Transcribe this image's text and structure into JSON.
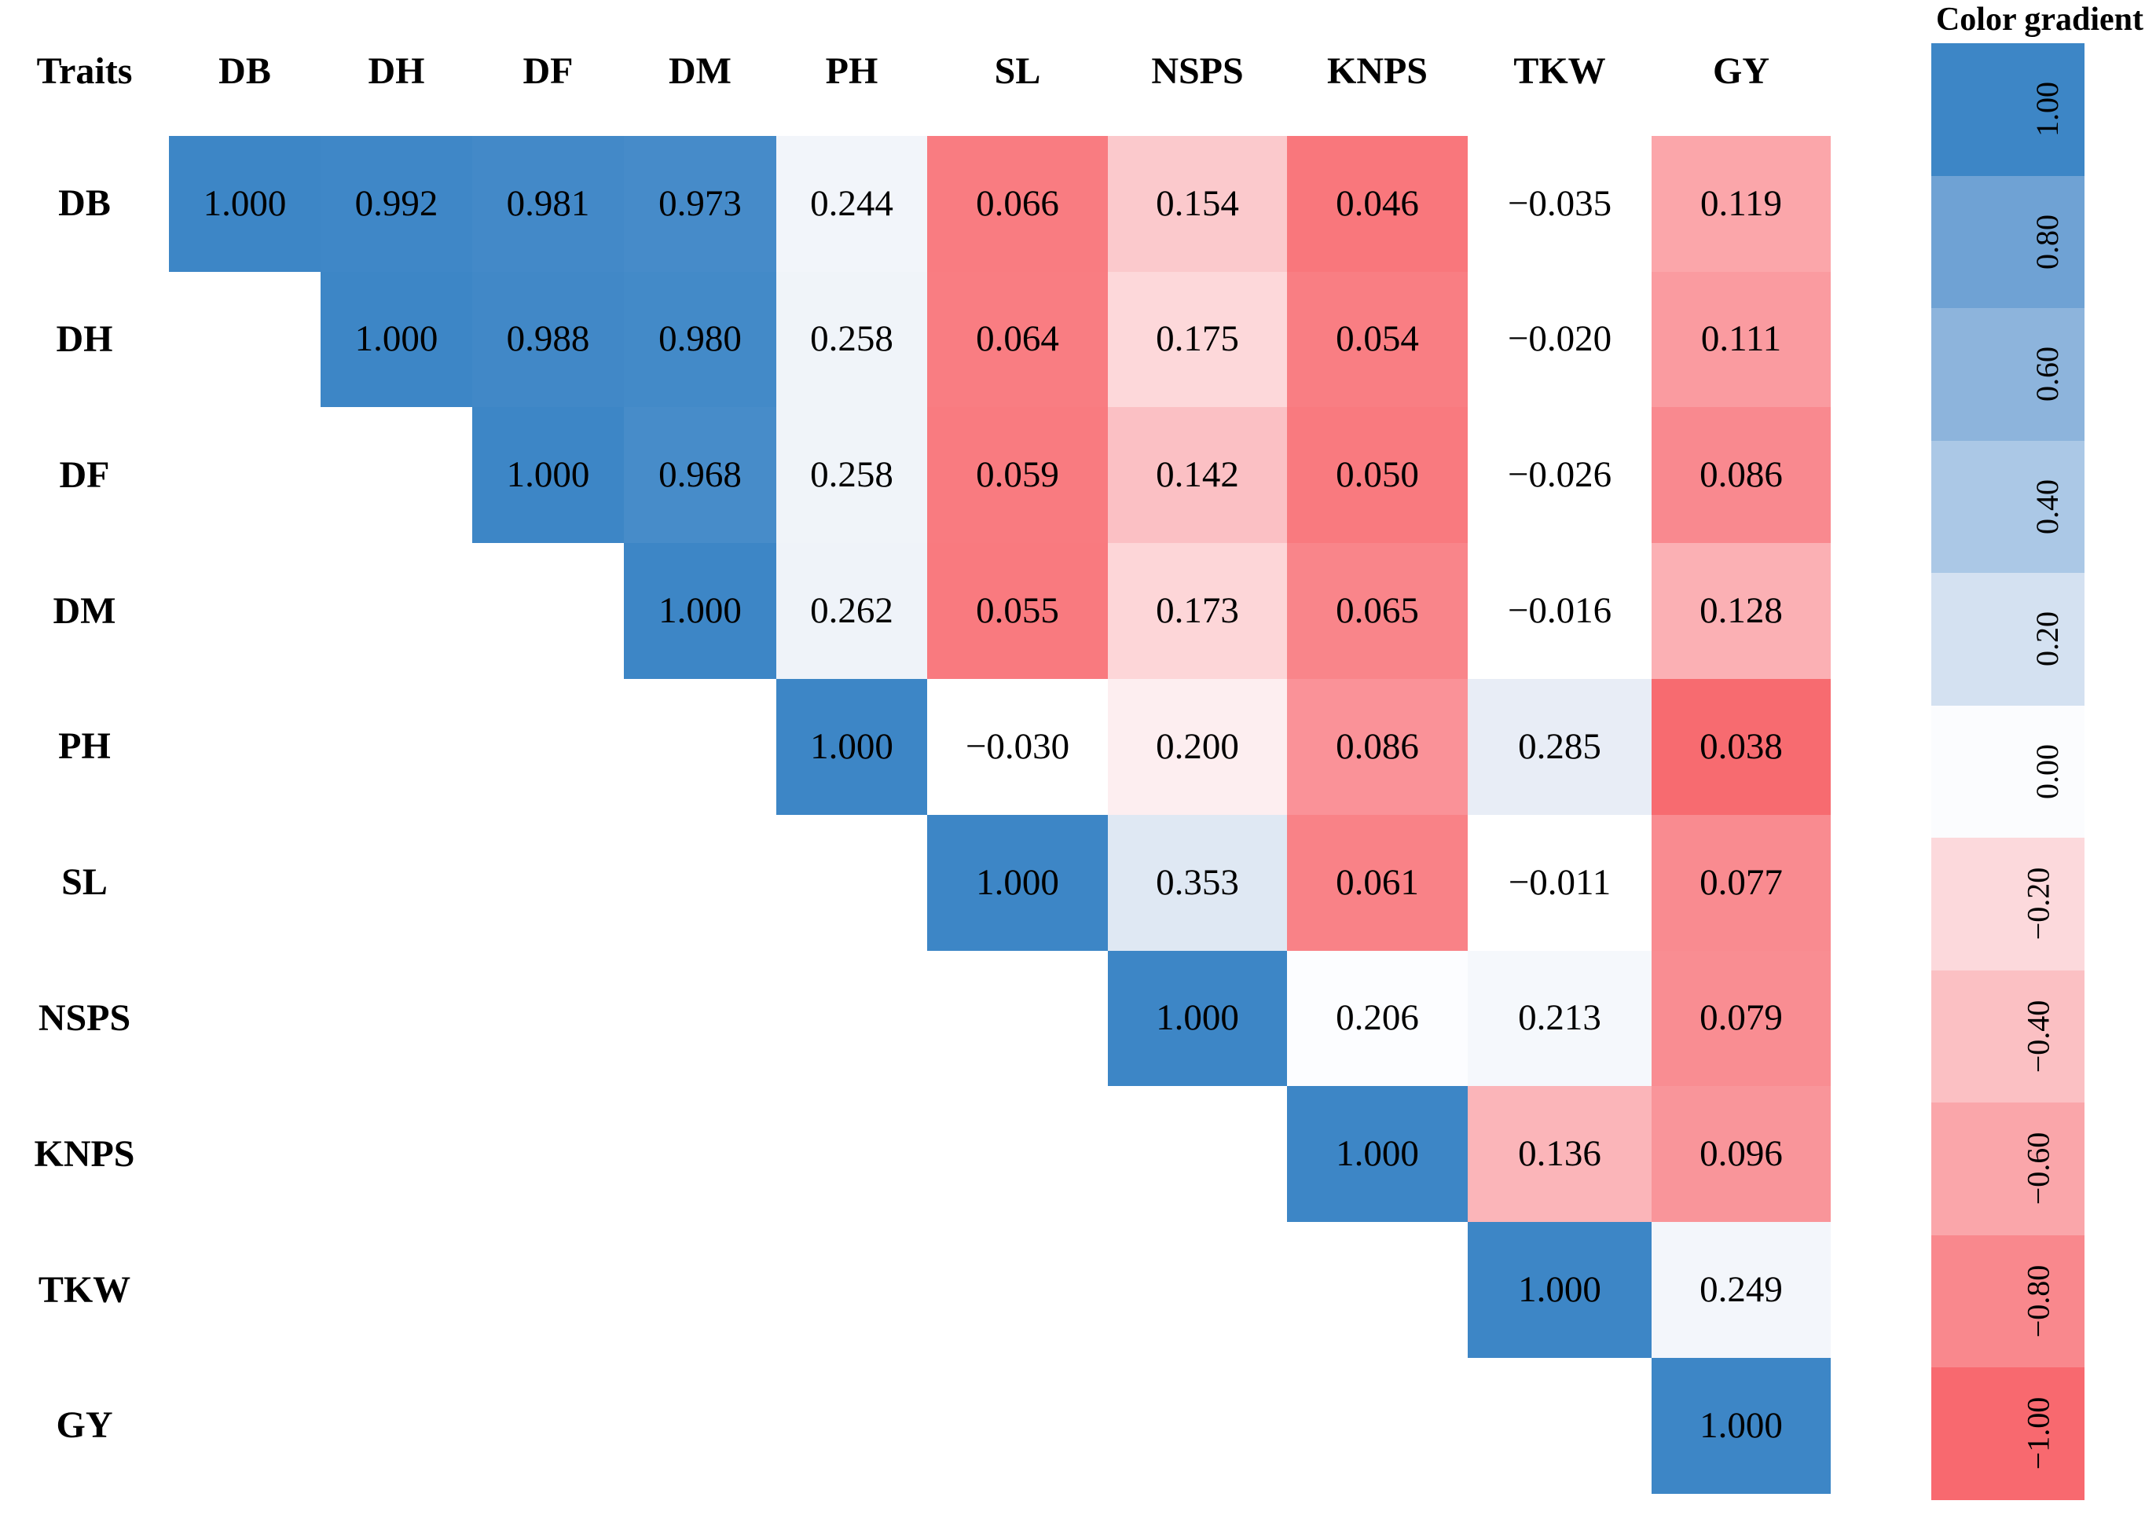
{
  "chart_data": {
    "type": "heatmap",
    "title": "Color gradient",
    "corner_label": "Traits",
    "traits": [
      "DB",
      "DH",
      "DF",
      "DM",
      "PH",
      "SL",
      "NSPS",
      "KNPS",
      "TKW",
      "GY"
    ],
    "matrix": [
      [
        1.0,
        0.992,
        0.981,
        0.973,
        0.244,
        0.066,
        0.154,
        0.046,
        -0.035,
        0.119
      ],
      [
        null,
        1.0,
        0.988,
        0.98,
        0.258,
        0.064,
        0.175,
        0.054,
        -0.02,
        0.111
      ],
      [
        null,
        null,
        1.0,
        0.968,
        0.258,
        0.059,
        0.142,
        0.05,
        -0.026,
        0.086
      ],
      [
        null,
        null,
        null,
        1.0,
        0.262,
        0.055,
        0.173,
        0.065,
        -0.016,
        0.128
      ],
      [
        null,
        null,
        null,
        null,
        1.0,
        -0.03,
        0.2,
        0.086,
        0.285,
        0.038
      ],
      [
        null,
        null,
        null,
        null,
        null,
        1.0,
        0.353,
        0.061,
        -0.011,
        0.077
      ],
      [
        null,
        null,
        null,
        null,
        null,
        null,
        1.0,
        0.206,
        0.213,
        0.079
      ],
      [
        null,
        null,
        null,
        null,
        null,
        null,
        null,
        1.0,
        0.136,
        0.096
      ],
      [
        null,
        null,
        null,
        null,
        null,
        null,
        null,
        null,
        1.0,
        0.249
      ],
      [
        null,
        null,
        null,
        null,
        null,
        null,
        null,
        null,
        null,
        1.0
      ]
    ],
    "cell_colors": [
      [
        "#3D86C6",
        "#3F87C7",
        "#4389C8",
        "#468BC9",
        "#F2F5FA",
        "#F97C81",
        "#FBC9CC",
        "#F9777C",
        "#FFFFFF",
        "#FBA6AA"
      ],
      [
        null,
        "#3D86C6",
        "#4188C7",
        "#438AC8",
        "#F0F4F9",
        "#F97D82",
        "#FDD8DA",
        "#F97E83",
        "#FFFFFF",
        "#FA9BA0"
      ],
      [
        null,
        null,
        "#3D86C6",
        "#478CC9",
        "#F0F4F9",
        "#F97B80",
        "#FBC0C4",
        "#F97A7F",
        "#FFFFFF",
        "#F9898F"
      ],
      [
        null,
        null,
        null,
        "#3D86C6",
        "#EFF3F9",
        "#F97A7F",
        "#FDD6D8",
        "#F9858A",
        "#FFFFFF",
        "#FBB0B4"
      ],
      [
        null,
        null,
        null,
        null,
        "#3D86C6",
        "#FFFFFF",
        "#FDEEF0",
        "#FA9298",
        "#E8EDF6",
        "#F76B70"
      ],
      [
        null,
        null,
        null,
        null,
        null,
        "#3D86C6",
        "#DFE8F3",
        "#F98287",
        "#FFFFFF",
        "#F98B90"
      ],
      [
        null,
        null,
        null,
        null,
        null,
        null,
        "#3D86C6",
        "#FCFDFF",
        "#F5F8FC",
        "#F98D92"
      ],
      [
        null,
        null,
        null,
        null,
        null,
        null,
        null,
        "#3D86C6",
        "#FBB5B9",
        "#F9959A"
      ],
      [
        null,
        null,
        null,
        null,
        null,
        null,
        null,
        null,
        "#3D86C6",
        "#F3F6FB"
      ],
      [
        null,
        null,
        null,
        null,
        null,
        null,
        null,
        null,
        null,
        "#3D86C6"
      ]
    ],
    "value_range": [
      -1.0,
      1.0
    ],
    "legend": {
      "position": "right",
      "labels": [
        "1.00",
        "0.80",
        "0.60",
        "0.40",
        "0.20",
        "0.00",
        "−0.20",
        "−0.40",
        "−0.60",
        "−0.80",
        "−1.00"
      ],
      "colors": [
        "#3D86C6",
        "#6FA2D4",
        "#8DB4DC",
        "#ABC8E6",
        "#D4E1F1",
        "#FBFCFE",
        "#FCD9DC",
        "#FBC0C3",
        "#FAA6AA",
        "#F9888D",
        "#F8696F"
      ]
    }
  }
}
